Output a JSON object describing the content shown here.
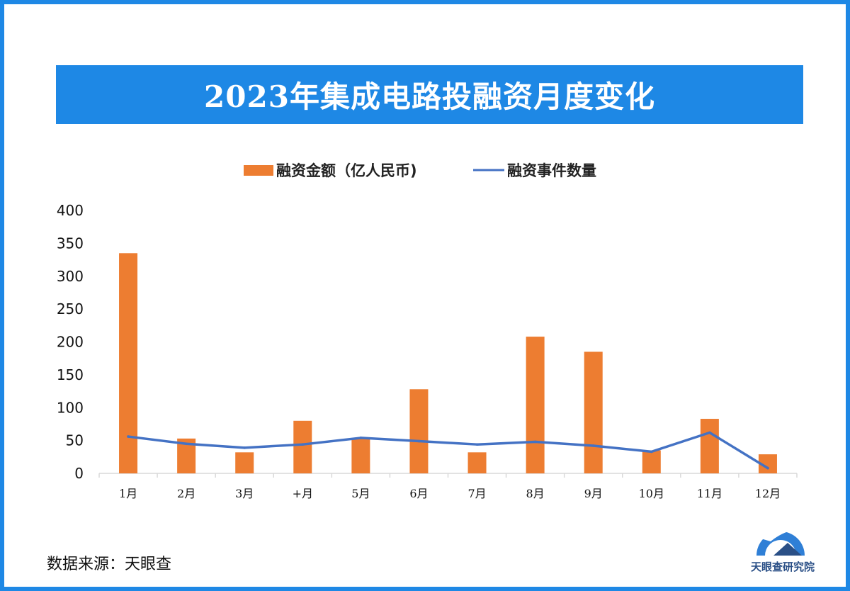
{
  "title": "2023年集成电路投融资月度变化",
  "source": "数据来源：天眼查",
  "logo_text": "天眼查研究院",
  "colors": {
    "border": "#1e88e5",
    "bar": "#ed7d31",
    "line": "#4472c4"
  },
  "chart_data": {
    "type": "bar",
    "categories": [
      "1月",
      "2月",
      "3月",
      "+月",
      "5月",
      "6月",
      "7月",
      "8月",
      "9月",
      "10月",
      "11月",
      "12月"
    ],
    "series": [
      {
        "name": "融资金额（亿人民币)",
        "type": "bar",
        "values": [
          335,
          53,
          32,
          80,
          54,
          128,
          32,
          208,
          185,
          35,
          83,
          29
        ]
      },
      {
        "name": "融资事件数量",
        "type": "line",
        "values": [
          56,
          45,
          39,
          44,
          54,
          49,
          44,
          48,
          42,
          33,
          62,
          8
        ]
      }
    ],
    "ylim": [
      0,
      400
    ],
    "yticks": [
      0,
      50,
      100,
      150,
      200,
      250,
      300,
      350,
      400
    ],
    "grid": false,
    "legend_position": "top-center"
  }
}
